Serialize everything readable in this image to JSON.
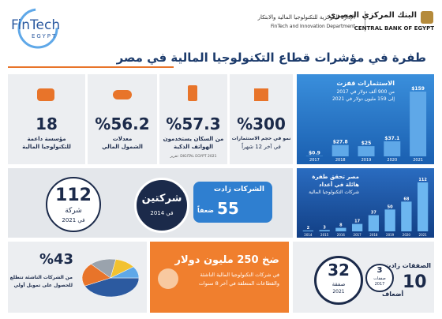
{
  "header": {
    "bank_ar": "البنك المركزي المصري",
    "bank_en": "CENTRAL BANK OF EGYPT",
    "dept_ar": "الإدارة المركزية للتكنولوجيا المالية والابتكار",
    "dept_en": "FinTech and Innovation Department",
    "logo": "FinTech",
    "logo_sub": "EGYPT"
  },
  "title": "طفرة في مؤشرات قطاع التكنولوجيا المالية في مصر",
  "stats": [
    {
      "value": "18",
      "line1": "مؤسسة داعمة",
      "line2": "للتكنولوجيا المالية"
    },
    {
      "value": "%56.2",
      "line1": "معدلات",
      "line2": "الشمول المالي"
    },
    {
      "value": "%57.3",
      "line1": "من السكان يستخدمون",
      "line2": "الهواتف الذكية",
      "source": "DIGITAL EGYPT 2021 :تقرير"
    },
    {
      "value": "%300",
      "line1": "نمو في حجم الاستثمارات",
      "line2": "في آخر 12 شهراً"
    }
  ],
  "investment_chart": {
    "type": "bar",
    "title": "الاستثمارات قفزت",
    "subtitle1": "من 900 ألف دولار في 2017",
    "subtitle2": "إلى 159 مليون دولار في 2021",
    "categories": [
      "2017",
      "2018",
      "2019",
      "2020",
      "2021"
    ],
    "values": [
      0.9,
      27.8,
      25,
      37.1,
      159
    ],
    "value_labels": [
      "$0.9",
      "$27.8",
      "$25",
      "$37.1",
      "$159"
    ],
    "color": "#5fa8e8"
  },
  "companies": {
    "count": "112",
    "count_unit": "شركة",
    "count_year": "في 2021",
    "start": "شركتين",
    "start_year": "في 2014",
    "growth_title": "الشركات زادت",
    "growth_value": "55",
    "growth_unit": "ضعفاً"
  },
  "companies_chart": {
    "type": "bar",
    "title1": "مصر تحقق طفرة",
    "title2": "هائلة في أعداد",
    "title3": "شركات التكنولوجيا المالية",
    "categories": [
      "2014",
      "2015",
      "2016",
      "2017",
      "2018",
      "2019",
      "2020",
      "2021"
    ],
    "values": [
      2,
      3,
      8,
      17,
      37,
      50,
      68,
      112
    ],
    "color": "#6cb6f0"
  },
  "startups": {
    "value": "%43",
    "line1": "من الشركات الناشئة تتطلع",
    "line2": "للحصول على تمويل أولي",
    "pie": {
      "type": "pie",
      "values": [
        43,
        20,
        15,
        12,
        10
      ],
      "colors": [
        "#2c5aa0",
        "#e8742a",
        "#9aa3ad",
        "#f2c230",
        "#5fa8e8"
      ]
    }
  },
  "funding": {
    "line1": "ضخ 250 مليون دولار",
    "line2": "في شركات التكنولوجيا المالية الناشئة",
    "line3": "والقطاعات المتعلقة في آخر 8 سنوات"
  },
  "deals": {
    "title": "الصفقات زادت",
    "value": "10",
    "unit": "أضعاف",
    "start": "3",
    "start_unit": "صفقات",
    "start_year": "2017",
    "end": "32",
    "end_unit": "صفقة",
    "end_year": "2021"
  }
}
